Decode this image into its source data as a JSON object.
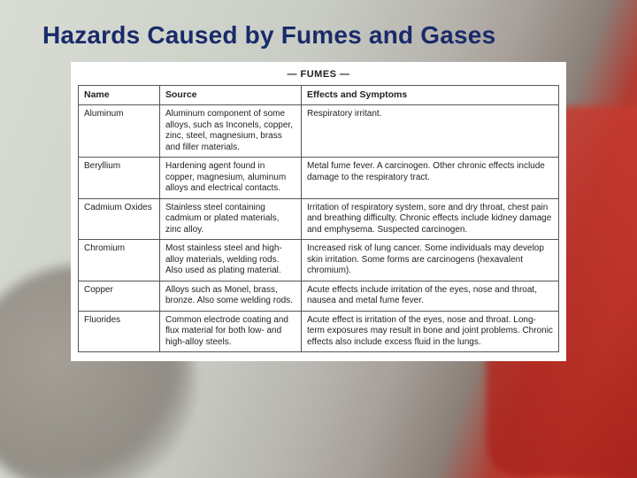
{
  "title": "Hazards Caused by Fumes and Gases",
  "table": {
    "caption": "— FUMES —",
    "columns": [
      "Name",
      "Source",
      "Effects and Symptoms"
    ],
    "rows": [
      {
        "name": "Aluminum",
        "source": "Aluminum component of some alloys, such as Inconels, copper, zinc, steel, magnesium, brass and filler materials.",
        "effects": "Respiratory irritant."
      },
      {
        "name": "Beryllium",
        "source": "Hardening agent found in copper, magnesium, aluminum alloys and electrical contacts.",
        "effects": "Metal fume fever. A carcinogen. Other chronic effects include damage to the respiratory tract."
      },
      {
        "name": "Cadmium Oxides",
        "source": "Stainless steel containing cadmium or plated materials, zinc alloy.",
        "effects": "Irritation of respiratory system, sore and dry throat, chest pain and breathing difficulty. Chronic effects include kidney damage and emphysema. Suspected carcinogen."
      },
      {
        "name": "Chromium",
        "source": "Most stainless steel and high-alloy materials, welding rods. Also used as plating material.",
        "effects": "Increased risk of lung cancer. Some individuals may develop skin irritation. Some forms are carcinogens (hexavalent chromium)."
      },
      {
        "name": "Copper",
        "source": "Alloys such as Monel, brass, bronze. Also some welding rods.",
        "effects": "Acute effects include irritation of the eyes, nose and throat, nausea and metal fume fever."
      },
      {
        "name": "Fluorides",
        "source": "Common electrode coating and flux material for both low- and high-alloy steels.",
        "effects": "Acute effect is irritation of the eyes, nose and throat. Long-term exposures may result in bone and joint problems. Chronic effects also include excess fluid in the lungs."
      }
    ]
  },
  "colors": {
    "title": "#1a2a6a",
    "border": "#555555",
    "text": "#222222",
    "table_bg": "#ffffff"
  },
  "fonts": {
    "title_family": "Verdana",
    "title_size_pt": 21,
    "table_size_pt": 8
  }
}
